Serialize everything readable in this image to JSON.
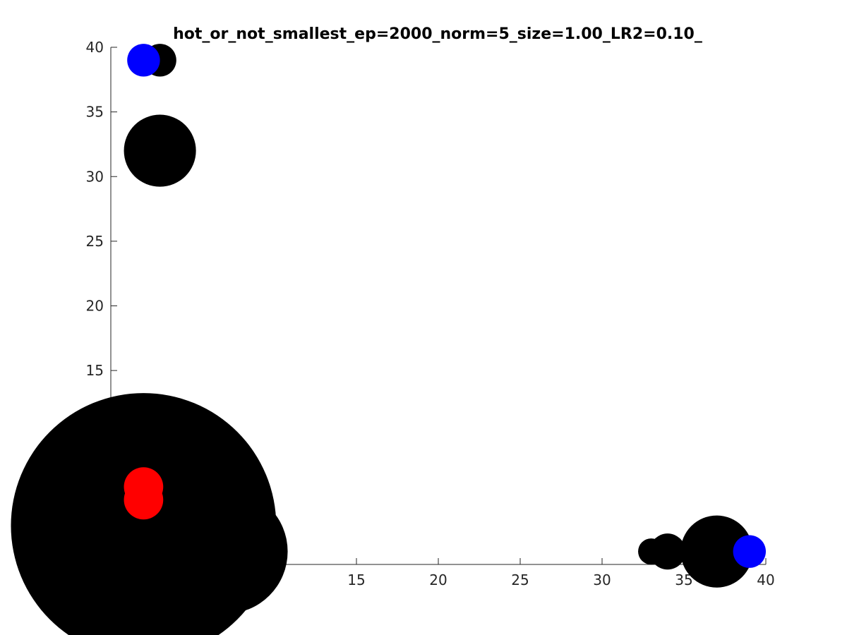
{
  "chart_data": {
    "type": "scatter",
    "title": "hot_or_not_smallest_ep=2000_norm=5_size=1.00_LR2=0.10_",
    "xlabel": "",
    "ylabel": "",
    "xlim": [
      0,
      40
    ],
    "ylim": [
      0,
      40
    ],
    "x_ticks": [
      15,
      20,
      25,
      30,
      35,
      40
    ],
    "y_ticks": [
      15,
      20,
      25,
      30,
      35,
      40
    ],
    "x_tick_labels": [
      "15",
      "20",
      "25",
      "30",
      "35",
      "40"
    ],
    "y_tick_labels": [
      "15",
      "20",
      "25",
      "30",
      "35",
      "40"
    ],
    "grid": false,
    "box": false,
    "colors": {
      "black": "#000000",
      "blue": "#0000ff",
      "red": "#ff0000"
    },
    "series": [
      {
        "color": "black",
        "points": [
          {
            "x": 2,
            "y": 3,
            "r": 8.1
          },
          {
            "x": 7,
            "y": 1,
            "r": 3.8
          },
          {
            "x": 10,
            "y": 1,
            "r": 0.7
          },
          {
            "x": 3,
            "y": 32,
            "r": 2.2
          },
          {
            "x": 3,
            "y": 39,
            "r": 1.0
          },
          {
            "x": 37,
            "y": 1,
            "r": 2.2
          },
          {
            "x": 34,
            "y": 1,
            "r": 1.1
          },
          {
            "x": 33,
            "y": 1,
            "r": 0.8
          }
        ]
      },
      {
        "color": "blue",
        "points": [
          {
            "x": 2,
            "y": 39,
            "r": 1.0
          },
          {
            "x": 39,
            "y": 1,
            "r": 1.0
          }
        ]
      },
      {
        "color": "red",
        "points": [
          {
            "x": 2,
            "y": 6,
            "r": 1.2
          },
          {
            "x": 2,
            "y": 5,
            "r": 1.2
          }
        ]
      }
    ]
  }
}
